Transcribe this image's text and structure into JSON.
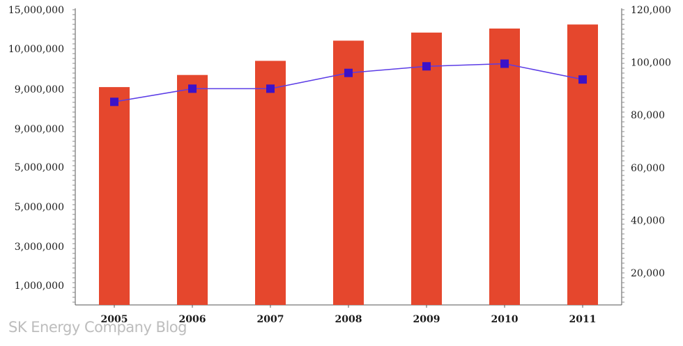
{
  "chart_data": {
    "type": "bar+line",
    "categories": [
      "2005",
      "2006",
      "2007",
      "2008",
      "2009",
      "2010",
      "2011"
    ],
    "left_axis": {
      "tick_labels": [
        "15,000,000",
        "10,000,000",
        "9,000,000",
        "9,000,000",
        "5,000,000",
        "5,000,000",
        "3,000,000",
        "1,000,000"
      ]
    },
    "right_axis": {
      "tick_labels": [
        "120,000",
        "100,000",
        "80,000",
        "60,000",
        "40,000",
        "20,000"
      ],
      "tick_values": [
        120000,
        100000,
        80000,
        60000,
        40000,
        20000
      ]
    },
    "series": [
      {
        "type": "bar",
        "axis": "left",
        "values": [
          9050000,
          9350000,
          9700000,
          10200000,
          10400000,
          10500000,
          10600000
        ]
      },
      {
        "type": "line",
        "axis": "right",
        "values": [
          85000,
          90000,
          90000,
          96000,
          98500,
          99500,
          93500
        ]
      }
    ],
    "colors": {
      "bar": "#e5472d",
      "line": "#5b3ce6",
      "marker": "#3c12c8",
      "axis": "#555555"
    }
  },
  "watermark": "SK Energy Company Blog"
}
